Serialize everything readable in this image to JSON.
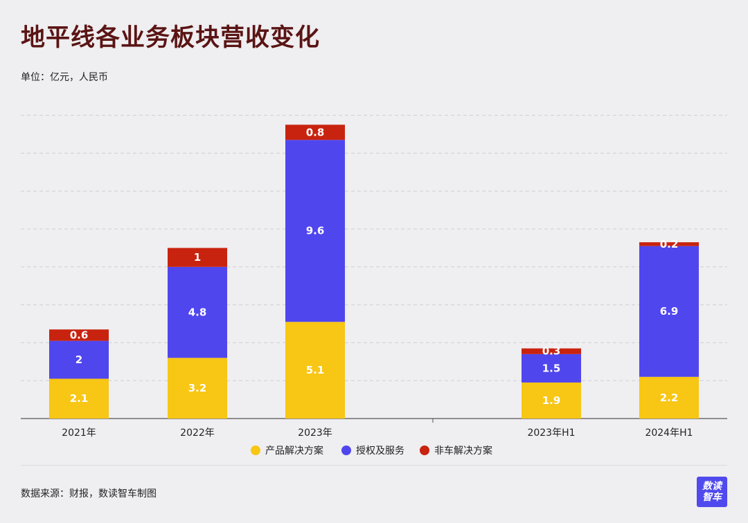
{
  "title": "地平线各业务板块营收变化",
  "subtitle": "单位：亿元，人民币",
  "source": "数据来源：财报，数读智车制图",
  "logo": {
    "line1": "数读",
    "line2": "智车"
  },
  "colors": {
    "product": "#f8c614",
    "license": "#5046ee",
    "noncar": "#c8230f",
    "title": "#5a1414"
  },
  "chart_data": {
    "type": "bar",
    "stacked": true,
    "categories": [
      "2021年",
      "2022年",
      "2023年",
      "2023年H1",
      "2024年H1"
    ],
    "series": [
      {
        "name": "产品解决方案",
        "color": "#f8c614",
        "values": [
          2.1,
          3.2,
          5.1,
          1.9,
          2.2
        ]
      },
      {
        "name": "授权及服务",
        "color": "#5046ee",
        "values": [
          2,
          4.8,
          9.6,
          1.5,
          6.9
        ]
      },
      {
        "name": "非车解决方案",
        "color": "#c8230f",
        "values": [
          0.6,
          1,
          0.8,
          0.3,
          0.2
        ]
      }
    ],
    "ylim": [
      0,
      16
    ],
    "grid": true,
    "legend": "bottom"
  }
}
